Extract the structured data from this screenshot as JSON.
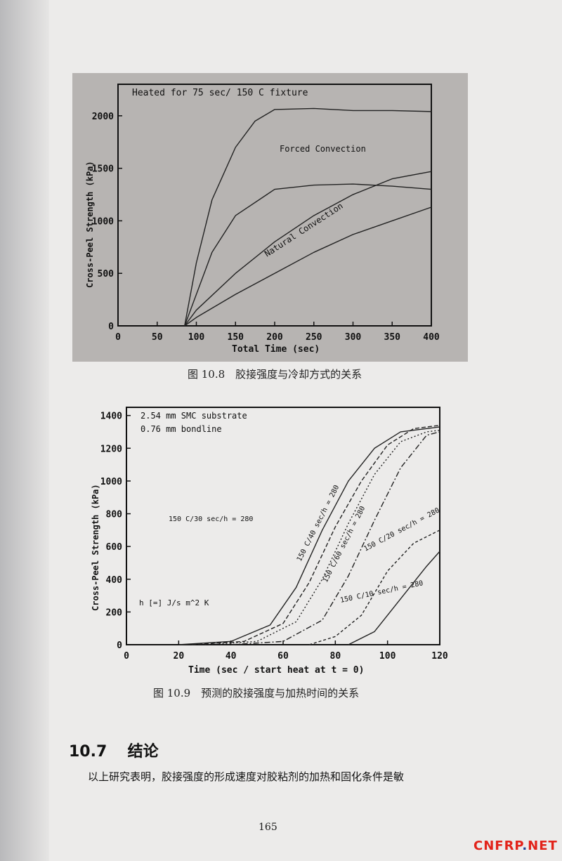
{
  "figure1": {
    "caption": "图 10.8　胶接强度与冷却方式的关系",
    "chart_data": {
      "type": "line",
      "title": "Heated for 75 sec/ 150 C fixture",
      "xlabel": "Total Time (sec)",
      "ylabel": "Cross-Peel Strength (kPa)",
      "xlim": [
        0,
        400
      ],
      "ylim": [
        0,
        2300
      ],
      "xticks": [
        "0",
        "50",
        "100",
        "150",
        "200",
        "250",
        "300",
        "350",
        "400"
      ],
      "yticks": [
        "0",
        "500",
        "1000",
        "1500",
        "2000"
      ],
      "annotations": [
        "Forced Convection",
        "Natural Convection"
      ],
      "series": [
        {
          "x": [
            85,
            100,
            120,
            150,
            175,
            200,
            250,
            300,
            350,
            400
          ],
          "y": [
            0,
            600,
            1200,
            1700,
            1950,
            2060,
            2070,
            2050,
            2050,
            2040
          ]
        },
        {
          "x": [
            85,
            100,
            120,
            150,
            200,
            250,
            300,
            350,
            400
          ],
          "y": [
            0,
            300,
            700,
            1050,
            1300,
            1340,
            1350,
            1330,
            1300
          ]
        },
        {
          "x": [
            85,
            100,
            150,
            200,
            250,
            300,
            350,
            400
          ],
          "y": [
            0,
            150,
            500,
            800,
            1050,
            1250,
            1400,
            1470
          ]
        },
        {
          "x": [
            85,
            100,
            150,
            200,
            250,
            300,
            350,
            400
          ],
          "y": [
            0,
            80,
            300,
            500,
            700,
            870,
            1000,
            1130
          ]
        }
      ]
    }
  },
  "figure2": {
    "caption": "图 10.9　预测的胶接强度与加热时间的关系",
    "chart_data": {
      "type": "line",
      "xlabel": "Time (sec / start heat at t = 0)",
      "ylabel": "Cross-Peel Strength (kPa)",
      "xlim": [
        0,
        120
      ],
      "ylim": [
        0,
        1450
      ],
      "xticks": [
        "0",
        "20",
        "40",
        "60",
        "80",
        "100",
        "120"
      ],
      "yticks": [
        "0",
        "200",
        "400",
        "600",
        "800",
        "1000",
        "1200",
        "1400"
      ],
      "annotations": [
        "2.54 mm SMC substrate",
        "0.76 mm bondline",
        "h [=] J/s m^2 K",
        "150 C/30 sec/h = 280",
        "150 C/40 sec/h = 280",
        "150 C/60 sec/h = 280",
        "150 C/20 sec/h = 280",
        "150 C/10 sec/h = 280"
      ],
      "series": [
        {
          "x": [
            20,
            40,
            55,
            65,
            75,
            85,
            95,
            105,
            120
          ],
          "y": [
            0,
            20,
            120,
            350,
            700,
            1000,
            1200,
            1300,
            1330
          ]
        },
        {
          "x": [
            25,
            45,
            60,
            70,
            80,
            90,
            100,
            110,
            120
          ],
          "y": [
            0,
            20,
            130,
            380,
            720,
            1000,
            1220,
            1320,
            1340
          ]
        },
        {
          "x": [
            30,
            50,
            65,
            75,
            85,
            95,
            105,
            115,
            120
          ],
          "y": [
            0,
            20,
            140,
            400,
            740,
            1040,
            1240,
            1300,
            1310
          ]
        },
        {
          "x": [
            40,
            60,
            75,
            85,
            95,
            105,
            115,
            120
          ],
          "y": [
            0,
            20,
            150,
            420,
            760,
            1080,
            1280,
            1300
          ]
        },
        {
          "x": [
            70,
            80,
            90,
            100,
            110,
            120
          ],
          "y": [
            0,
            50,
            180,
            450,
            620,
            700
          ]
        },
        {
          "x": [
            85,
            95,
            105,
            115,
            120
          ],
          "y": [
            0,
            80,
            280,
            480,
            570
          ]
        }
      ]
    }
  },
  "section": {
    "number": "10.7",
    "title": "结论"
  },
  "paragraph": "以上研究表明，胶接强度的形成速度对胶粘剂的加热和固化条件是敏",
  "page_number": "165",
  "watermark": {
    "brand": "CNFRP",
    "dot": ".",
    "tld": "NET"
  }
}
